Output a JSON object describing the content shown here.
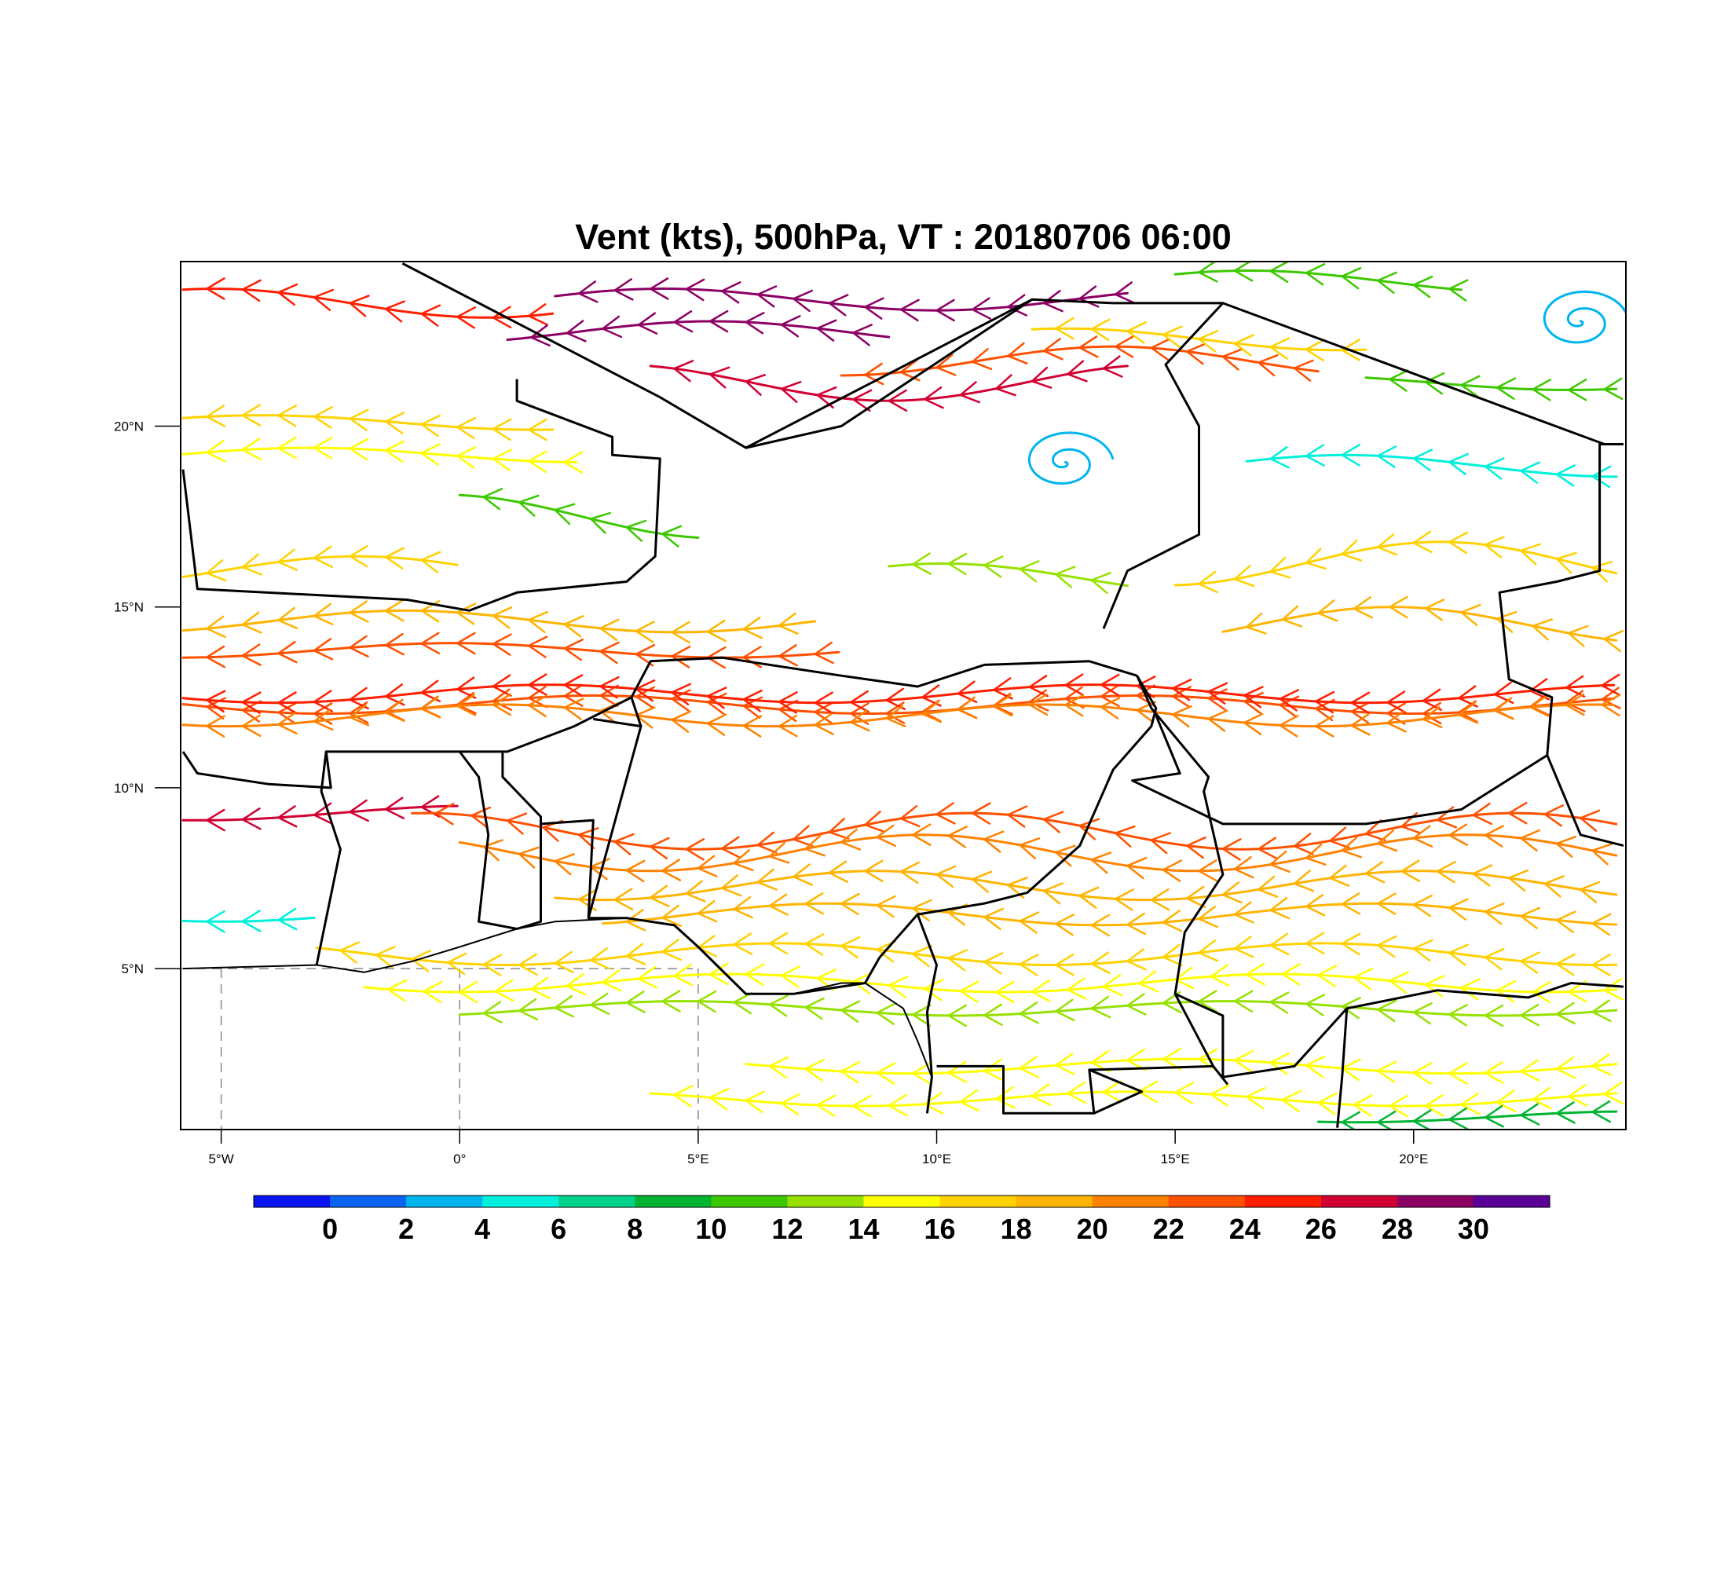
{
  "title": "Vent (kts), 500hPa, VT : 20180706  06:00",
  "lon_ticks": [
    {
      "value": -5,
      "label": "5°W"
    },
    {
      "value": 0,
      "label": "0°"
    },
    {
      "value": 5,
      "label": "5°E"
    },
    {
      "value": 10,
      "label": "10°E"
    },
    {
      "value": 15,
      "label": "15°E"
    },
    {
      "value": 20,
      "label": "20°E"
    }
  ],
  "lat_ticks": [
    {
      "value": 5,
      "label": "5°N"
    },
    {
      "value": 10,
      "label": "10°N"
    },
    {
      "value": 15,
      "label": "15°N"
    },
    {
      "value": 20,
      "label": "20°N"
    }
  ],
  "extent": {
    "lon_min": -5.85,
    "lon_max": 24.45,
    "lat_min": 0.55,
    "lat_max": 24.55
  },
  "colorbar": {
    "colors": [
      "#0a14f0",
      "#0a64f0",
      "#00b4f0",
      "#00f0dc",
      "#00d28c",
      "#00b432",
      "#3cc800",
      "#96e100",
      "#ffff00",
      "#ffd200",
      "#ffb400",
      "#ff8200",
      "#ff5000",
      "#ff1e00",
      "#d20032",
      "#8c0064",
      "#5a0096"
    ],
    "labels": [
      "0",
      "2",
      "4",
      "6",
      "8",
      "10",
      "12",
      "14",
      "16",
      "18",
      "20",
      "22",
      "24",
      "26",
      "28",
      "30"
    ]
  },
  "streamlines": [
    {
      "speed": 24,
      "lat": 12.3,
      "lon_start": -5.8,
      "lon_end": 24.4,
      "amp": 0.25
    },
    {
      "speed": 26,
      "lat": 12.6,
      "lon_start": -5.8,
      "lon_end": 24.4,
      "amp": 0.25
    },
    {
      "speed": 22,
      "lat": 12.0,
      "lon_start": -5.8,
      "lon_end": 24.4,
      "amp": 0.3
    },
    {
      "speed": 24,
      "lat": 13.8,
      "lon_start": -5.8,
      "lon_end": 8.0,
      "amp": 0.2
    },
    {
      "speed": 20,
      "lat": 14.6,
      "lon_start": -5.8,
      "lon_end": 7.5,
      "amp": 0.3
    },
    {
      "speed": 18,
      "lat": 16.0,
      "lon_start": -5.8,
      "lon_end": 0.0,
      "amp": 0.4
    },
    {
      "speed": 16,
      "lat": 19.2,
      "lon_start": -5.8,
      "lon_end": 2.5,
      "amp": 0.2
    },
    {
      "speed": 18,
      "lat": 20.1,
      "lon_start": -5.8,
      "lon_end": 2.0,
      "amp": 0.2
    },
    {
      "speed": 26,
      "lat": 23.4,
      "lon_start": -5.8,
      "lon_end": 2.0,
      "amp": 0.4
    },
    {
      "speed": 30,
      "lat": 22.6,
      "lon_start": 1.0,
      "lon_end": 9.0,
      "amp": 0.3
    },
    {
      "speed": 30,
      "lat": 23.5,
      "lon_start": 2.0,
      "lon_end": 14.0,
      "amp": 0.3
    },
    {
      "speed": 28,
      "lat": 21.2,
      "lon_start": 4.0,
      "lon_end": 14.0,
      "amp": 0.5
    },
    {
      "speed": 24,
      "lat": 21.8,
      "lon_start": 8.0,
      "lon_end": 18.0,
      "amp": 0.4
    },
    {
      "speed": 18,
      "lat": 22.4,
      "lon_start": 12.0,
      "lon_end": 19.0,
      "amp": 0.3
    },
    {
      "speed": 28,
      "lat": 9.3,
      "lon_start": -5.8,
      "lon_end": 0.0,
      "amp": 0.2
    },
    {
      "speed": 24,
      "lat": 8.8,
      "lon_start": -1.0,
      "lon_end": 24.4,
      "amp": 0.5
    },
    {
      "speed": 22,
      "lat": 8.2,
      "lon_start": 0.0,
      "lon_end": 24.4,
      "amp": 0.5
    },
    {
      "speed": 20,
      "lat": 7.3,
      "lon_start": 2.0,
      "lon_end": 24.4,
      "amp": 0.4
    },
    {
      "speed": 20,
      "lat": 6.5,
      "lon_start": 3.0,
      "lon_end": 24.4,
      "amp": 0.3
    },
    {
      "speed": 18,
      "lat": 5.4,
      "lon_start": -3.0,
      "lon_end": 24.4,
      "amp": 0.3
    },
    {
      "speed": 16,
      "lat": 4.6,
      "lon_start": -2.0,
      "lon_end": 24.4,
      "amp": 0.25
    },
    {
      "speed": 14,
      "lat": 3.9,
      "lon_start": 0.0,
      "lon_end": 24.4,
      "amp": 0.2
    },
    {
      "speed": 16,
      "lat": 2.3,
      "lon_start": 6.0,
      "lon_end": 24.4,
      "amp": 0.2
    },
    {
      "speed": 16,
      "lat": 1.4,
      "lon_start": 4.0,
      "lon_end": 24.4,
      "amp": 0.2
    },
    {
      "speed": 10,
      "lat": 0.9,
      "lon_start": 18.0,
      "lon_end": 24.4,
      "amp": 0.15
    },
    {
      "speed": 6,
      "lat": 6.5,
      "lon_start": -5.8,
      "lon_end": -3.0,
      "amp": 0.2
    },
    {
      "speed": 12,
      "lat": 17.5,
      "lon_start": 0.0,
      "lon_end": 5.0,
      "amp": 0.6
    },
    {
      "speed": 14,
      "lat": 15.8,
      "lon_start": 9.0,
      "lon_end": 14.0,
      "amp": 0.4
    },
    {
      "speed": 18,
      "lat": 16.2,
      "lon_start": 15.0,
      "lon_end": 24.4,
      "amp": 0.6
    },
    {
      "speed": 20,
      "lat": 14.5,
      "lon_start": 16.0,
      "lon_end": 24.4,
      "amp": 0.5
    },
    {
      "speed": 5,
      "lat": 18.9,
      "lon_start": 16.5,
      "lon_end": 24.4,
      "amp": 0.3
    },
    {
      "speed": 12,
      "lat": 21.2,
      "lon_start": 19.0,
      "lon_end": 24.4,
      "amp": 0.2
    },
    {
      "speed": 12,
      "lat": 24.0,
      "lon_start": 15.0,
      "lon_end": 21.0,
      "amp": 0.3
    }
  ],
  "vortices": [
    {
      "speed": 4,
      "lon": 12.7,
      "lat": 19.0,
      "r": 0.9
    },
    {
      "speed": 4,
      "lon": 23.5,
      "lat": 22.9,
      "r": 0.9
    }
  ],
  "borders": [
    [
      [
        -1.2,
        24.5
      ],
      [
        4.2,
        20.8
      ],
      [
        6.0,
        19.4
      ],
      [
        12.0,
        23.5
      ],
      [
        13.7,
        23.4
      ],
      [
        16.0,
        23.4
      ],
      [
        24.0,
        19.5
      ]
    ],
    [
      [
        -5.8,
        18.8
      ],
      [
        -5.5,
        15.5
      ],
      [
        -1.1,
        15.2
      ],
      [
        0.2,
        14.9
      ],
      [
        1.2,
        15.4
      ],
      [
        3.5,
        15.7
      ],
      [
        4.1,
        16.4
      ],
      [
        4.2,
        19.1
      ],
      [
        3.2,
        19.2
      ],
      [
        3.2,
        19.7
      ],
      [
        1.2,
        20.7
      ],
      [
        1.2,
        21.3
      ]
    ],
    [
      [
        6.0,
        19.4
      ],
      [
        8.0,
        20.0
      ],
      [
        12.0,
        23.5
      ]
    ],
    [
      [
        -5.8,
        11.0
      ],
      [
        -5.5,
        10.4
      ],
      [
        -4.0,
        10.1
      ],
      [
        -2.7,
        10.0
      ],
      [
        -2.8,
        11.0
      ],
      [
        0.0,
        11.0
      ],
      [
        1.0,
        11.0
      ],
      [
        2.4,
        11.7
      ],
      [
        3.6,
        12.5
      ],
      [
        4.0,
        13.5
      ],
      [
        5.5,
        13.6
      ],
      [
        8.0,
        13.1
      ],
      [
        9.6,
        12.8
      ],
      [
        11.0,
        13.4
      ],
      [
        13.2,
        13.5
      ],
      [
        14.2,
        13.1
      ]
    ],
    [
      [
        -2.8,
        11.0
      ],
      [
        -2.9,
        9.9
      ],
      [
        -2.5,
        8.3
      ],
      [
        -3.0,
        5.1
      ]
    ],
    [
      [
        0.0,
        11.0
      ],
      [
        0.4,
        10.3
      ],
      [
        0.6,
        8.7
      ],
      [
        0.4,
        6.3
      ],
      [
        1.2,
        6.1
      ]
    ],
    [
      [
        1.2,
        6.1
      ],
      [
        1.7,
        6.3
      ],
      [
        1.7,
        9.2
      ],
      [
        0.9,
        10.3
      ],
      [
        0.9,
        11.0
      ]
    ],
    [
      [
        1.7,
        9.0
      ],
      [
        2.8,
        9.1
      ],
      [
        2.7,
        6.4
      ],
      [
        3.8,
        11.7
      ],
      [
        2.8,
        11.9
      ]
    ],
    [
      [
        3.8,
        11.7
      ],
      [
        3.6,
        12.5
      ]
    ],
    [
      [
        2.7,
        6.4
      ],
      [
        3.5,
        6.4
      ],
      [
        4.5,
        6.2
      ],
      [
        5.0,
        5.6
      ],
      [
        6.0,
        4.3
      ],
      [
        7.0,
        4.3
      ],
      [
        8.5,
        4.6
      ],
      [
        8.8,
        5.3
      ],
      [
        9.6,
        6.5
      ],
      [
        11.0,
        6.8
      ],
      [
        11.9,
        7.1
      ],
      [
        13.0,
        8.4
      ],
      [
        13.7,
        10.5
      ],
      [
        14.5,
        11.7
      ],
      [
        14.6,
        12.2
      ],
      [
        14.2,
        13.1
      ]
    ],
    [
      [
        9.6,
        6.5
      ],
      [
        10.0,
        5.1
      ],
      [
        9.8,
        3.8
      ],
      [
        9.9,
        2.0
      ],
      [
        9.8,
        1.0
      ]
    ],
    [
      [
        14.2,
        13.1
      ],
      [
        14.5,
        12.2
      ],
      [
        15.7,
        10.3
      ],
      [
        15.6,
        9.9
      ],
      [
        16.0,
        7.6
      ],
      [
        15.2,
        6.0
      ],
      [
        15.0,
        4.3
      ],
      [
        15.8,
        2.3
      ],
      [
        16.1,
        1.8
      ]
    ],
    [
      [
        14.6,
        12.0
      ],
      [
        15.1,
        10.4
      ],
      [
        14.1,
        10.2
      ],
      [
        16.0,
        9.0
      ],
      [
        18.0,
        9.0
      ],
      [
        19.0,
        9.0
      ],
      [
        21.0,
        9.4
      ],
      [
        22.8,
        10.9
      ],
      [
        23.5,
        8.7
      ],
      [
        24.4,
        8.4
      ]
    ],
    [
      [
        15.0,
        4.3
      ],
      [
        16.0,
        3.7
      ],
      [
        16.0,
        2.0
      ],
      [
        17.5,
        2.3
      ],
      [
        18.6,
        3.9
      ],
      [
        20.5,
        4.4
      ],
      [
        22.4,
        4.2
      ],
      [
        23.3,
        4.6
      ],
      [
        24.4,
        4.5
      ]
    ],
    [
      [
        18.6,
        3.9
      ],
      [
        18.5,
        2.0
      ],
      [
        18.4,
        0.6
      ]
    ],
    [
      [
        13.5,
        14.4
      ],
      [
        14.0,
        16.0
      ],
      [
        15.5,
        17.0
      ],
      [
        15.5,
        20.0
      ],
      [
        14.8,
        21.7
      ],
      [
        16.0,
        23.4
      ]
    ],
    [
      [
        22.8,
        10.9
      ],
      [
        22.9,
        12.5
      ],
      [
        22.0,
        13.0
      ],
      [
        21.8,
        15.4
      ],
      [
        23.0,
        15.7
      ],
      [
        23.9,
        16.0
      ],
      [
        23.9,
        19.5
      ],
      [
        24.4,
        19.5
      ]
    ],
    [
      [
        10.0,
        2.3
      ],
      [
        11.4,
        2.3
      ],
      [
        11.4,
        1.0
      ],
      [
        13.3,
        1.0
      ],
      [
        13.2,
        2.2
      ],
      [
        15.8,
        2.3
      ]
    ],
    [
      [
        13.2,
        2.2
      ],
      [
        14.3,
        1.6
      ],
      [
        13.3,
        1.0
      ]
    ]
  ],
  "coastline": [
    [
      -5.8,
      5.0
    ],
    [
      -3.0,
      5.1
    ],
    [
      -2.0,
      4.9
    ],
    [
      -1.0,
      5.2
    ],
    [
      0.0,
      5.6
    ],
    [
      1.2,
      6.1
    ],
    [
      2.0,
      6.3
    ],
    [
      3.5,
      6.4
    ],
    [
      4.5,
      6.2
    ],
    [
      5.0,
      5.6
    ],
    [
      6.0,
      4.3
    ],
    [
      7.0,
      4.3
    ],
    [
      8.0,
      4.6
    ],
    [
      8.5,
      4.6
    ],
    [
      9.3,
      3.9
    ],
    [
      9.6,
      3.0
    ],
    [
      9.9,
      2.0
    ],
    [
      9.8,
      1.0
    ]
  ]
}
